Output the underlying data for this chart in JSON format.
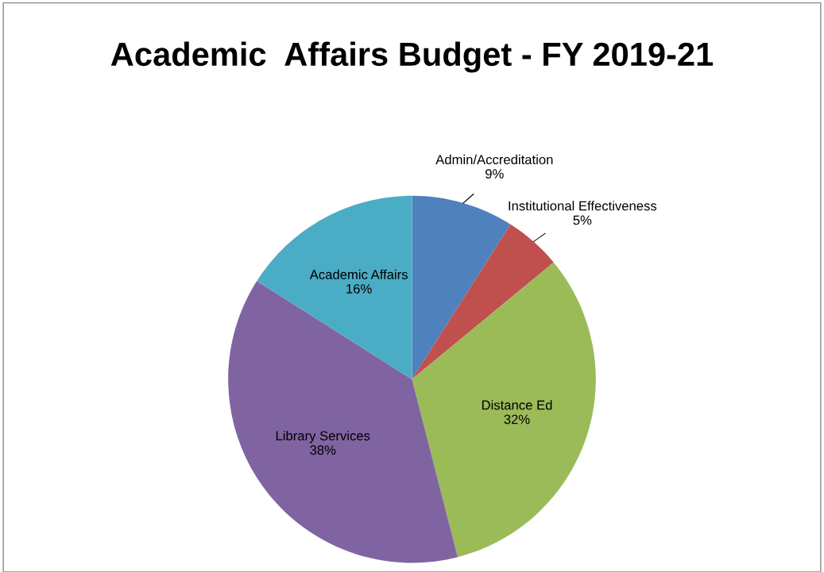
{
  "chart_data": {
    "type": "pie",
    "title": "Academic  Affairs Budget - FY 2019-21",
    "categories": [
      "Admin/Accreditation",
      "Institutional Effectiveness",
      "Distance Ed",
      "Library Services",
      "Academic Affairs"
    ],
    "values": [
      9,
      5,
      32,
      38,
      16
    ],
    "value_labels": [
      "9%",
      "5%",
      "32%",
      "38%",
      "16%"
    ],
    "colors": [
      "#4f81bd",
      "#c0504d",
      "#9bbb59",
      "#8064a2",
      "#4bacc6"
    ],
    "legend": false
  }
}
